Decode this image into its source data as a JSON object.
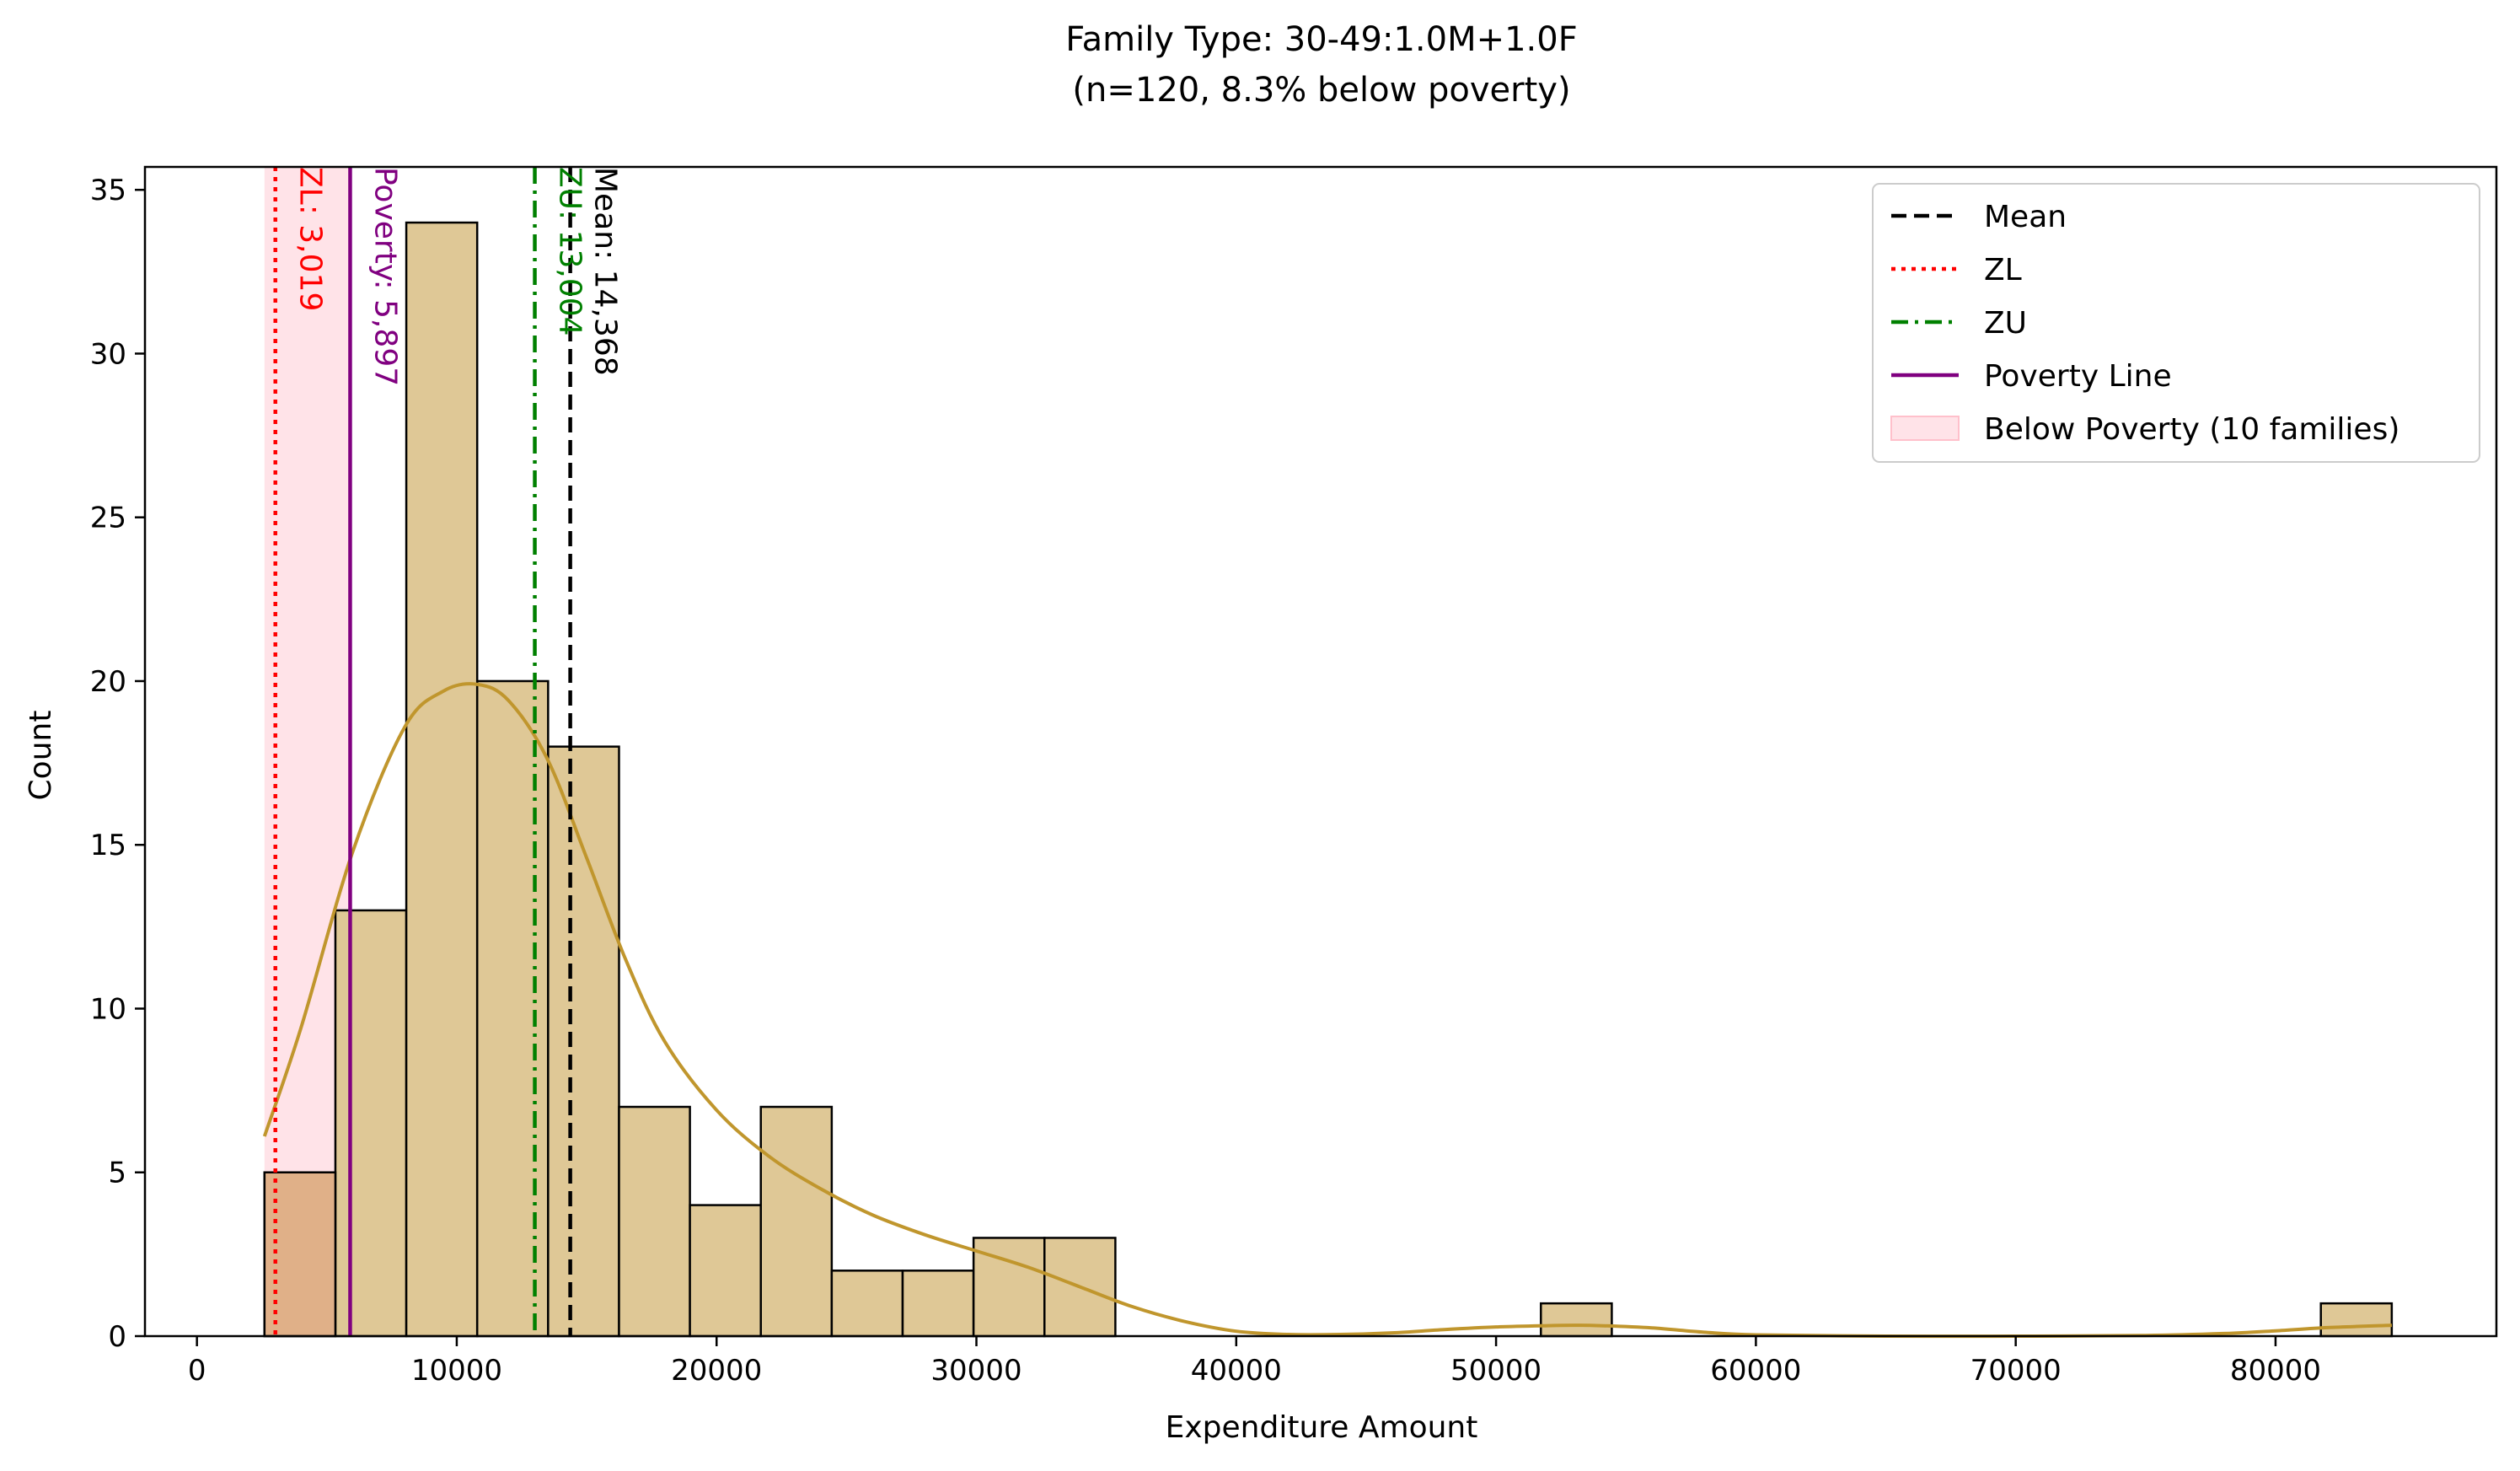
{
  "chart_data": {
    "type": "bar",
    "title": "Family Type: 30-49:1.0M+1.0F",
    "subtitle": "(n=120, 8.3% below poverty)",
    "xlabel": "Expenditure Amount",
    "ylabel": "Count",
    "xlim": [
      -2000,
      88500
    ],
    "ylim": [
      0,
      35.7
    ],
    "x_ticks": [
      0,
      10000,
      20000,
      30000,
      40000,
      50000,
      60000,
      70000,
      80000
    ],
    "y_ticks": [
      0,
      5,
      10,
      15,
      20,
      25,
      30,
      35
    ],
    "bin_edges": [
      2600,
      5329,
      8058,
      10787,
      13516,
      16245,
      18974,
      21703,
      24432,
      27161,
      29890,
      32619,
      35348
    ],
    "bin_counts": [
      5,
      13,
      34,
      20,
      18,
      7,
      4,
      7,
      2,
      2,
      3,
      3
    ],
    "outlier_bins": [
      {
        "x0": 51725,
        "x1": 54454,
        "count": 1
      },
      {
        "x0": 81744,
        "x1": 84473,
        "count": 1
      }
    ],
    "kde": {
      "x": [
        2600,
        4000,
        6000,
        8000,
        9500,
        10800,
        12000,
        13500,
        15000,
        16500,
        18000,
        20000,
        22000,
        24000,
        26000,
        28000,
        30000,
        32000,
        34000,
        36000,
        38000,
        40000,
        42000,
        44000,
        46000,
        48000,
        50000,
        52000,
        53000,
        54000,
        56000,
        58000,
        60000,
        65000,
        70000,
        75000,
        78000,
        80000,
        82000,
        84473
      ],
      "y": [
        6.1,
        9.4,
        14.8,
        18.6,
        19.7,
        19.9,
        19.4,
        17.6,
        14.6,
        11.5,
        9.0,
        6.9,
        5.5,
        4.5,
        3.7,
        3.1,
        2.6,
        2.1,
        1.5,
        0.9,
        0.45,
        0.15,
        0.05,
        0.05,
        0.1,
        0.2,
        0.28,
        0.32,
        0.33,
        0.32,
        0.25,
        0.12,
        0.04,
        0.0,
        0.0,
        0.02,
        0.08,
        0.16,
        0.26,
        0.33
      ]
    },
    "reference_lines": [
      {
        "name": "Mean",
        "value": 14368,
        "label": "Mean: 14,368",
        "color": "#000000",
        "dash": "dashed"
      },
      {
        "name": "ZL",
        "value": 3019,
        "label": "ZL: 3,019",
        "color": "#ff0000",
        "dash": "dotted"
      },
      {
        "name": "ZU",
        "value": 13004,
        "label": "ZU: 13,004",
        "color": "#008000",
        "dash": "dashdot"
      },
      {
        "name": "Poverty Line",
        "value": 5897,
        "label": "Poverty: 5,897",
        "color": "#800080",
        "dash": "solid"
      }
    ],
    "poverty_band": {
      "x0": 2600,
      "x1": 5897,
      "label": "Below Poverty (10 families)",
      "color": "#ffc0cb"
    },
    "legend": {
      "position": "top-right",
      "entries": [
        "Mean",
        "ZL",
        "ZU",
        "Poverty Line",
        "Below Poverty (10 families)"
      ]
    },
    "colors": {
      "bar_fill": "#dfc896",
      "bar_edge": "#000000",
      "kde": "#c0962d",
      "overlap_fill": "#e0b088"
    },
    "grid": false
  }
}
